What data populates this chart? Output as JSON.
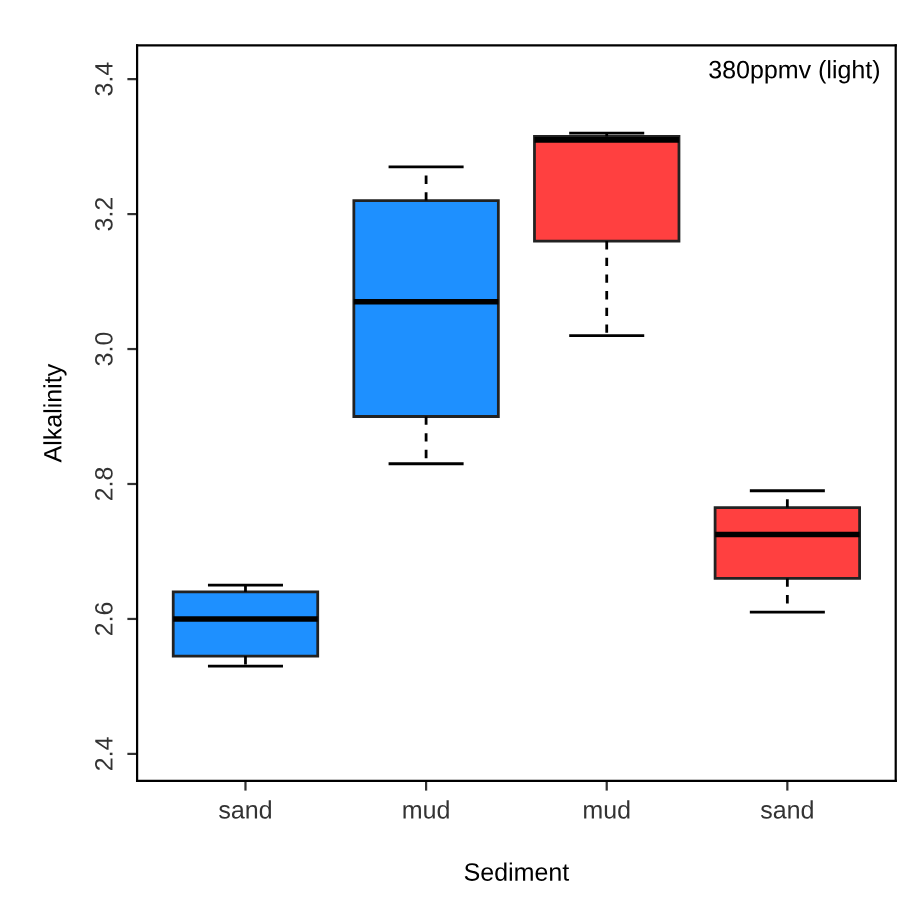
{
  "chart_data": {
    "type": "box",
    "xlabel": "Sediment",
    "ylabel": "Alkalinity",
    "annotations": [
      "380ppmv (light)"
    ],
    "categories": [
      "sand",
      "mud",
      "mud",
      "sand"
    ],
    "boxes": [
      {
        "low": 2.53,
        "q1": 2.545,
        "median": 2.6,
        "q3": 2.64,
        "high": 2.65
      },
      {
        "low": 2.83,
        "q1": 2.9,
        "median": 3.07,
        "q3": 3.22,
        "high": 3.27
      },
      {
        "low": 3.02,
        "q1": 3.16,
        "median": 3.31,
        "q3": 3.315,
        "high": 3.32
      },
      {
        "low": 2.61,
        "q1": 2.66,
        "median": 2.725,
        "q3": 2.765,
        "high": 2.79
      }
    ],
    "colors": [
      "#1e90ff",
      "#1e90ff",
      "#ff4040",
      "#ff4040"
    ],
    "ylim": [
      2.36,
      3.45
    ],
    "yticks": [
      2.4,
      2.6,
      2.8,
      {
        "value": 3.0,
        "label": "3.0"
      },
      3.2,
      3.4
    ],
    "grid": false
  }
}
